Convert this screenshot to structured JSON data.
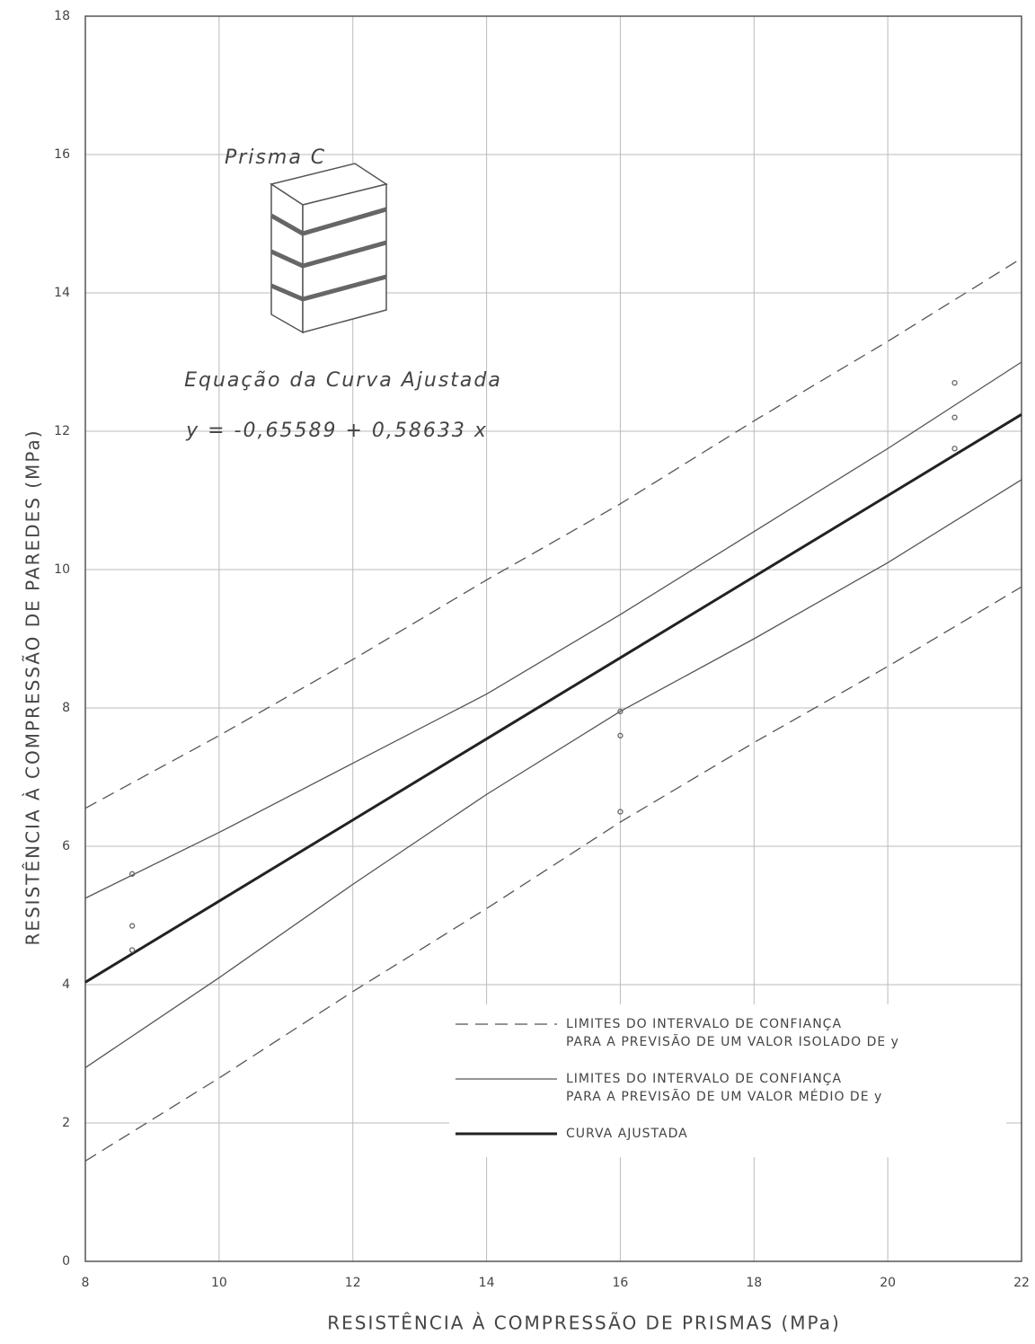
{
  "chart_data": {
    "type": "line",
    "xlabel": "RESISTÊNCIA À COMPRESSÃO DE PRISMAS (MPa)",
    "ylabel": "RESISTÊNCIA À COMPRESSÃO DE PAREDES (MPa)",
    "annotations": [
      "Prisma C",
      "Equação da Curva Ajustada",
      "y = -0,65589 + 0,58633 x"
    ],
    "xlim": [
      8,
      22
    ],
    "ylim": [
      0,
      18
    ],
    "xticks": [
      8,
      10,
      12,
      14,
      16,
      18,
      20,
      22
    ],
    "yticks": [
      0,
      2,
      4,
      6,
      8,
      10,
      12,
      14,
      16,
      18
    ],
    "grid": true,
    "x": [
      8,
      10,
      12,
      14,
      16,
      18,
      20,
      22
    ],
    "series": [
      {
        "name": "LIMITES DO INTERVALO DE CONFIANÇA\nPARA A PREVISÃO DE UM VALOR ISOLADO DE y",
        "color": "#555555",
        "dash": true,
        "width": 1.3,
        "values": [
          6.55,
          7.6,
          8.7,
          9.85,
          10.95,
          12.15,
          13.3,
          14.5
        ]
      },
      {
        "color": "#555555",
        "dash": true,
        "width": 1.3,
        "values": [
          1.45,
          2.65,
          3.9,
          5.1,
          6.35,
          7.5,
          8.6,
          9.75
        ]
      },
      {
        "name": "LIMITES DO INTERVALO DE CONFIANÇA\nPARA A PREVISÃO DE UM VALOR MÉDIO DE y",
        "color": "#555555",
        "dash": false,
        "width": 1.3,
        "values": [
          5.25,
          6.2,
          7.2,
          8.2,
          9.35,
          10.55,
          11.75,
          13.0
        ]
      },
      {
        "color": "#555555",
        "dash": false,
        "width": 1.3,
        "values": [
          2.8,
          4.1,
          5.45,
          6.75,
          7.95,
          9.0,
          10.1,
          11.3
        ]
      },
      {
        "name": "CURVA AJUSTADA",
        "color": "#222222",
        "dash": false,
        "width": 3,
        "values": [
          4.035,
          5.207,
          6.38,
          7.553,
          8.725,
          9.898,
          11.07,
          12.243
        ]
      }
    ],
    "points": {
      "color": "#666666",
      "x": [
        8.7,
        8.7,
        8.7,
        16,
        16,
        16,
        21,
        21,
        21
      ],
      "values": [
        5.6,
        4.85,
        4.5,
        7.95,
        7.6,
        6.5,
        12.7,
        12.2,
        11.75
      ]
    }
  }
}
